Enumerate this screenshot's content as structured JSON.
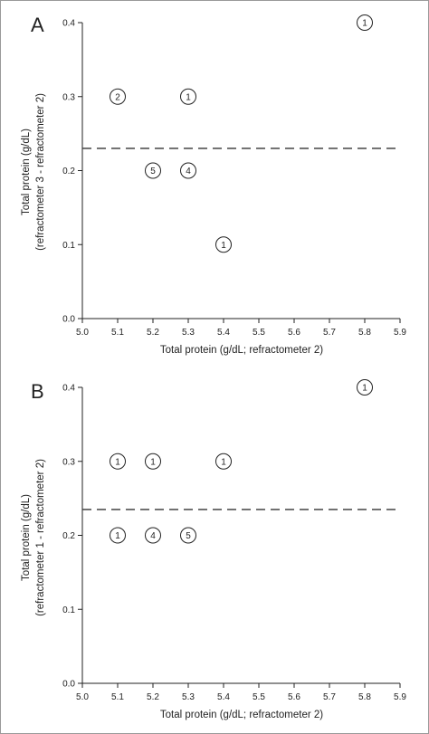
{
  "chart_data": [
    {
      "type": "scatter",
      "panel_label": "A",
      "xlabel": "Total protein (g/dL; refractometer 2)",
      "ylabel_lines": [
        "Total protein (g/dL)",
        "(refractometer 3 - refractometer 2)"
      ],
      "xlim": [
        5.0,
        5.9
      ],
      "ylim": [
        0.0,
        0.4
      ],
      "xticks": [
        "5.0",
        "5.1",
        "5.2",
        "5.3",
        "5.4",
        "5.5",
        "5.6",
        "5.7",
        "5.8",
        "5.9"
      ],
      "yticks": [
        "0.0",
        "0.1",
        "0.2",
        "0.3",
        "0.4"
      ],
      "reference_line_y": 0.23,
      "grid": false,
      "points": [
        {
          "x": 5.1,
          "y": 0.3,
          "label": "2"
        },
        {
          "x": 5.3,
          "y": 0.3,
          "label": "1"
        },
        {
          "x": 5.2,
          "y": 0.2,
          "label": "5"
        },
        {
          "x": 5.3,
          "y": 0.2,
          "label": "4"
        },
        {
          "x": 5.4,
          "y": 0.1,
          "label": "1"
        },
        {
          "x": 5.8,
          "y": 0.4,
          "label": "1"
        }
      ]
    },
    {
      "type": "scatter",
      "panel_label": "B",
      "xlabel": "Total protein (g/dL; refractometer 2)",
      "ylabel_lines": [
        "Total protein (g/dL)",
        "(refractometer 1 - refractometer 2)"
      ],
      "xlim": [
        5.0,
        5.9
      ],
      "ylim": [
        0.0,
        0.4
      ],
      "xticks": [
        "5.0",
        "5.1",
        "5.2",
        "5.3",
        "5.4",
        "5.5",
        "5.6",
        "5.7",
        "5.8",
        "5.9"
      ],
      "yticks": [
        "0.0",
        "0.1",
        "0.2",
        "0.3",
        "0.4"
      ],
      "reference_line_y": 0.235,
      "grid": false,
      "points": [
        {
          "x": 5.1,
          "y": 0.3,
          "label": "1"
        },
        {
          "x": 5.2,
          "y": 0.3,
          "label": "1"
        },
        {
          "x": 5.4,
          "y": 0.3,
          "label": "1"
        },
        {
          "x": 5.1,
          "y": 0.2,
          "label": "1"
        },
        {
          "x": 5.2,
          "y": 0.2,
          "label": "4"
        },
        {
          "x": 5.3,
          "y": 0.2,
          "label": "5"
        },
        {
          "x": 5.8,
          "y": 0.4,
          "label": "1"
        }
      ]
    }
  ]
}
